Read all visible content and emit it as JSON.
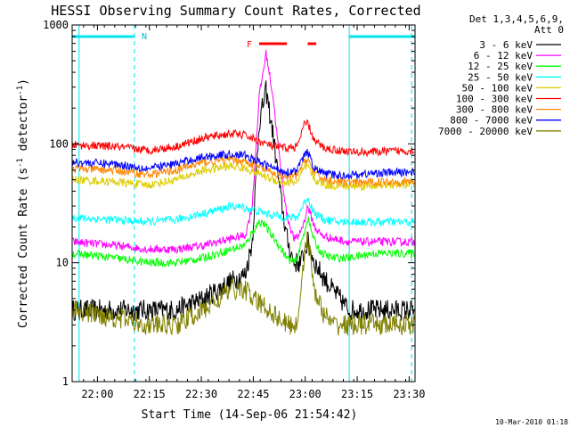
{
  "chart_data": {
    "type": "line",
    "title": "HESSI Observing Summary Count Rates, Corrected",
    "xlabel": "Start Time (14-Sep-06 21:54:42)",
    "ylabel_main": "Corrected Count Rate (s",
    "ylabel_sup1": "-1",
    "ylabel_mid": " detector",
    "ylabel_sup2": "-1",
    "ylabel_end": ")",
    "y_scale": "log",
    "ylim": [
      1,
      1000
    ],
    "xlim_minutes": [
      -2.0,
      97.0
    ],
    "x_ticks": [
      {
        "m": 5.3,
        "label": "22:00"
      },
      {
        "m": 20.3,
        "label": "22:15"
      },
      {
        "m": 35.3,
        "label": "22:30"
      },
      {
        "m": 50.3,
        "label": "22:45"
      },
      {
        "m": 65.3,
        "label": "23:00"
      },
      {
        "m": 80.3,
        "label": "23:15"
      },
      {
        "m": 95.3,
        "label": "23:30"
      }
    ],
    "y_ticks": [
      {
        "v": 1,
        "label": "1"
      },
      {
        "v": 10,
        "label": "10"
      },
      {
        "v": 100,
        "label": "100"
      },
      {
        "v": 1000,
        "label": "1000"
      }
    ],
    "legend_header_1": "Det 1,3,4,5,6,9,",
    "legend_header_2": "Att 0",
    "legend_position": "right",
    "timestamp": "10-Mar-2010 01:18",
    "annotations": [
      {
        "label": "N",
        "m": 16.0
      },
      {
        "label": "F",
        "m": 52.0
      }
    ],
    "night_bars": [
      [
        -2.0,
        16.0
      ],
      [
        78.0,
        97.0
      ]
    ],
    "flare_bars": [
      [
        52.0,
        60.0
      ],
      [
        66.0,
        68.5
      ]
    ],
    "series": [
      {
        "name": "3 - 6 keV",
        "color": "#000000",
        "x": [
          -2,
          10,
          20,
          28,
          36,
          44,
          48,
          50,
          52,
          54,
          56,
          58,
          60,
          62,
          64,
          65,
          66,
          68,
          70,
          73,
          78,
          85,
          97
        ],
        "y": [
          4,
          4,
          4,
          4,
          5,
          7,
          8,
          15,
          150,
          280,
          120,
          40,
          16,
          10,
          10,
          12,
          15,
          10,
          8,
          6,
          4,
          4,
          4
        ]
      },
      {
        "name": "6 - 12 keV",
        "color": "#ff00ff",
        "x": [
          -2,
          10,
          20,
          28,
          36,
          44,
          48,
          50,
          52,
          54,
          56,
          58,
          60,
          62,
          63,
          65,
          66,
          68,
          70,
          73,
          78,
          85,
          97
        ],
        "y": [
          15,
          14,
          13,
          13,
          14,
          16,
          17,
          30,
          250,
          580,
          250,
          70,
          25,
          16,
          16,
          22,
          30,
          20,
          17,
          16,
          15,
          15,
          15
        ]
      },
      {
        "name": "12 - 25 keV",
        "color": "#00ff00",
        "x": [
          -2,
          10,
          20,
          28,
          36,
          44,
          48,
          50,
          52,
          53,
          55,
          57,
          60,
          62,
          63,
          65,
          66,
          68,
          70,
          73,
          78,
          85,
          97
        ],
        "y": [
          12,
          11,
          10,
          10,
          11,
          13,
          14,
          18,
          22,
          22,
          18,
          15,
          11,
          10,
          11,
          18,
          24,
          15,
          12,
          11,
          11,
          12,
          12
        ]
      },
      {
        "name": "25 - 50 keV",
        "color": "#00ffff",
        "x": [
          -2,
          10,
          20,
          28,
          36,
          44,
          48,
          52,
          56,
          60,
          63,
          65,
          66,
          68,
          71,
          75,
          80,
          87,
          97
        ],
        "y": [
          24,
          23,
          22,
          23,
          26,
          30,
          29,
          27,
          25,
          24,
          24,
          32,
          35,
          26,
          23,
          22,
          22,
          22,
          22
        ]
      },
      {
        "name": "50 - 100 keV",
        "color": "#ddcc00",
        "x": [
          -2,
          10,
          20,
          28,
          36,
          44,
          48,
          52,
          56,
          60,
          63,
          65,
          66,
          68,
          71,
          75,
          80,
          87,
          97
        ],
        "y": [
          50,
          48,
          45,
          50,
          60,
          65,
          62,
          56,
          50,
          47,
          48,
          62,
          65,
          50,
          45,
          44,
          44,
          45,
          46
        ]
      },
      {
        "name": "100 - 300 keV",
        "color": "#ff0000",
        "x": [
          -2,
          10,
          20,
          28,
          36,
          44,
          48,
          52,
          56,
          60,
          63,
          65,
          66,
          68,
          71,
          75,
          80,
          87,
          97
        ],
        "y": [
          98,
          95,
          88,
          95,
          112,
          122,
          118,
          105,
          95,
          92,
          95,
          145,
          150,
          105,
          92,
          88,
          85,
          86,
          88
        ]
      },
      {
        "name": "300 - 800 keV",
        "color": "#ff8800",
        "x": [
          -2,
          10,
          20,
          28,
          36,
          44,
          48,
          52,
          56,
          60,
          63,
          65,
          66,
          68,
          71,
          75,
          80,
          87,
          97
        ],
        "y": [
          62,
          60,
          55,
          60,
          70,
          74,
          71,
          64,
          56,
          52,
          54,
          72,
          75,
          56,
          50,
          48,
          47,
          48,
          48
        ]
      },
      {
        "name": "800 - 7000 keV",
        "color": "#0000ff",
        "x": [
          -2,
          10,
          20,
          28,
          36,
          44,
          48,
          52,
          56,
          60,
          63,
          65,
          66,
          68,
          71,
          75,
          80,
          87,
          97
        ],
        "y": [
          70,
          68,
          62,
          68,
          78,
          82,
          80,
          70,
          63,
          58,
          60,
          80,
          85,
          62,
          56,
          54,
          55,
          57,
          58
        ]
      },
      {
        "name": "7000 - 20000 keV",
        "color": "#808000",
        "x": [
          -2,
          10,
          20,
          28,
          36,
          44,
          48,
          50,
          55,
          60,
          63,
          65,
          66,
          68,
          70,
          73,
          78,
          85,
          97
        ],
        "y": [
          4,
          3.5,
          3,
          3,
          4,
          6,
          6,
          5,
          4,
          3,
          3,
          12,
          16,
          6,
          4,
          3,
          3,
          3,
          3
        ]
      }
    ]
  }
}
